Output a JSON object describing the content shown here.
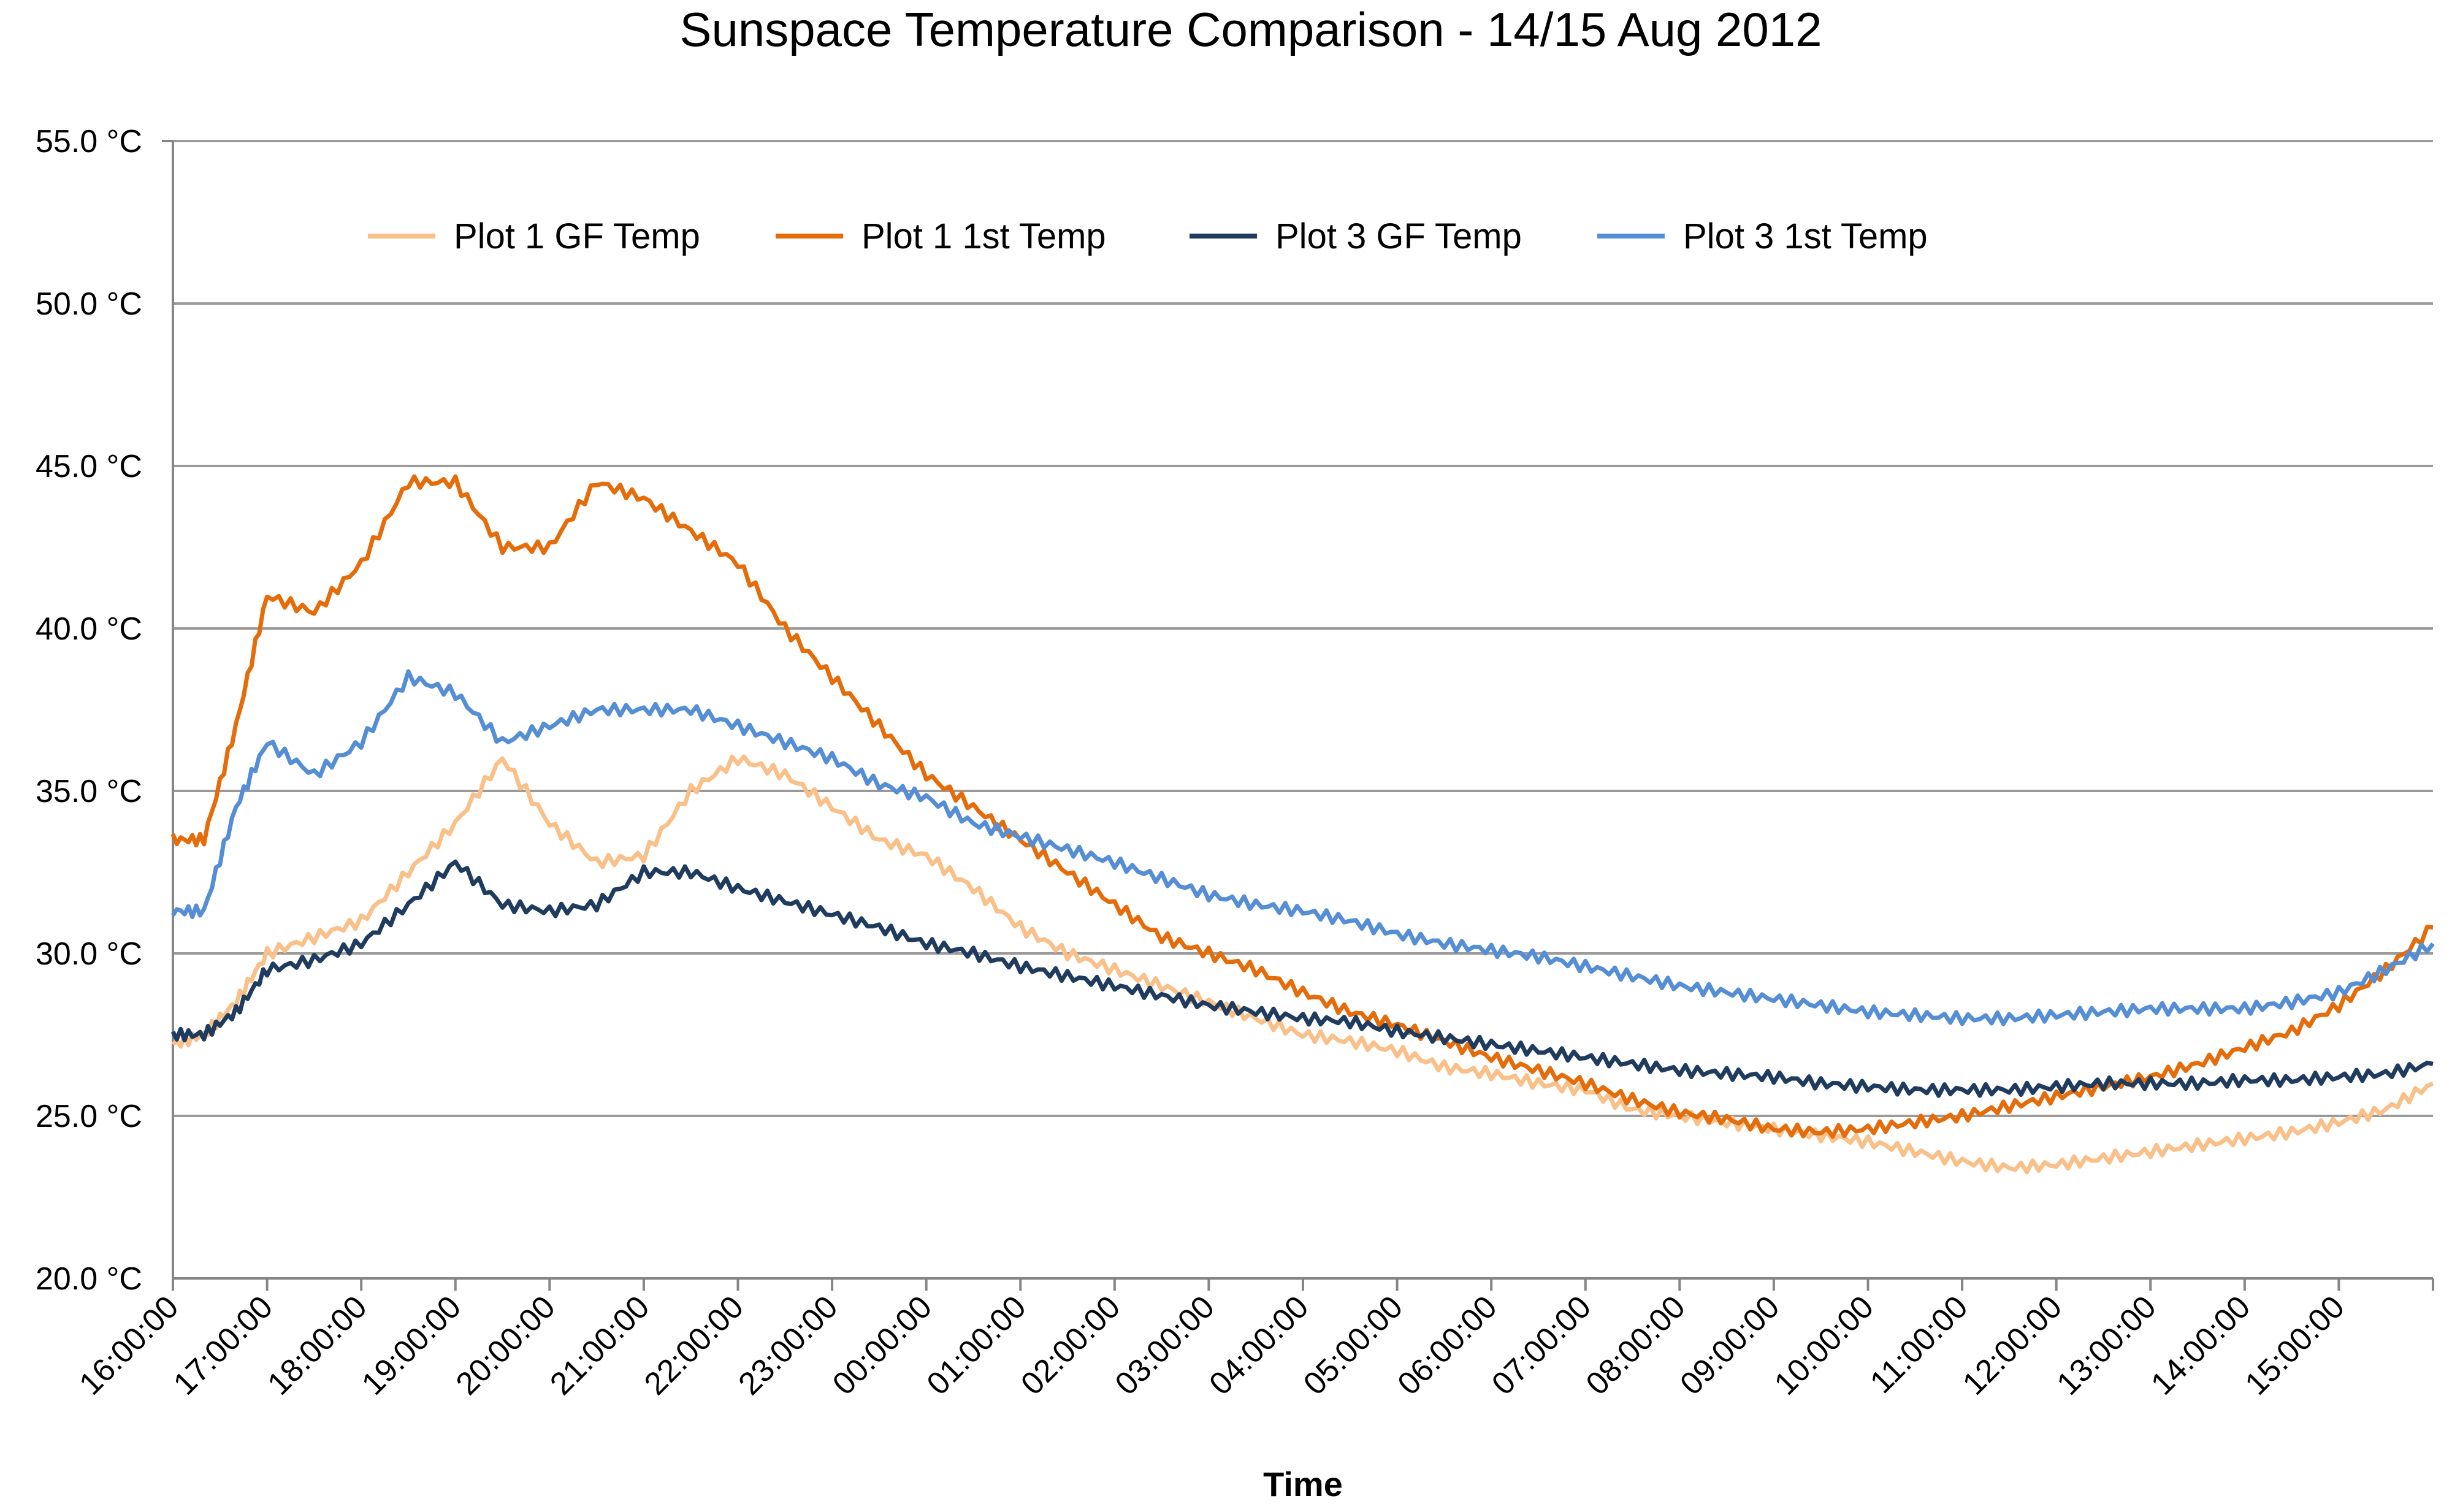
{
  "chart_data": {
    "type": "line",
    "title": "Sunspace Temperature Comparison - 14/15 Aug 2012",
    "xlabel": "Time",
    "ylabel": "",
    "ylim": [
      20,
      55
    ],
    "y_ticks": [
      "20.0 °C",
      "25.0 °C",
      "30.0 °C",
      "35.0 °C",
      "40.0 °C",
      "45.0 °C",
      "50.0 °C",
      "55.0 °C"
    ],
    "grid": true,
    "legend_placement": "top",
    "x_ticks": [
      "16:00:00",
      "17:00:00",
      "18:00:00",
      "19:00:00",
      "20:00:00",
      "21:00:00",
      "22:00:00",
      "23:00:00",
      "00:00:00",
      "01:00:00",
      "02:00:00",
      "03:00:00",
      "04:00:00",
      "05:00:00",
      "06:00:00",
      "07:00:00",
      "08:00:00",
      "09:00:00",
      "10:00:00",
      "11:00:00",
      "12:00:00",
      "13:00:00",
      "14:00:00",
      "15:00:00"
    ],
    "x_hours_from_start": [
      0,
      0.33,
      0.67,
      1,
      1.5,
      2,
      2.5,
      3,
      3.5,
      4,
      4.5,
      5,
      5.5,
      6,
      6.5,
      7,
      7.5,
      8,
      8.5,
      9,
      9.5,
      10,
      10.5,
      11,
      11.5,
      12,
      12.5,
      13,
      13.5,
      14,
      14.5,
      15,
      15.5,
      16,
      16.5,
      17,
      17.5,
      18,
      18.5,
      19,
      19.5,
      20,
      20.5,
      21,
      21.5,
      22,
      22.5,
      23,
      23.5,
      24
    ],
    "series": [
      {
        "name": "Plot 1 GF Temp",
        "color": "#f9c089",
        "values": [
          27.2,
          27.5,
          28.5,
          30.0,
          30.5,
          31.0,
          32.5,
          34.0,
          36.0,
          34.0,
          32.8,
          33.0,
          35.0,
          36.0,
          35.5,
          34.5,
          33.5,
          33.0,
          32.0,
          30.8,
          30.0,
          29.5,
          29.0,
          28.5,
          28.0,
          27.5,
          27.3,
          27.0,
          26.5,
          26.3,
          26.0,
          25.8,
          25.2,
          25.0,
          24.8,
          24.6,
          24.4,
          24.2,
          23.9,
          23.6,
          23.4,
          23.5,
          23.7,
          23.9,
          24.1,
          24.3,
          24.5,
          24.8,
          25.2,
          26.0
        ]
      },
      {
        "name": "Plot 1 1st Temp",
        "color": "#e46c0a",
        "values": [
          33.5,
          33.5,
          37.0,
          41.0,
          40.5,
          42.0,
          44.5,
          44.5,
          42.5,
          42.5,
          44.5,
          44.0,
          43.0,
          42.0,
          40.0,
          38.5,
          37.0,
          35.5,
          34.5,
          33.5,
          32.5,
          31.5,
          30.5,
          30.0,
          29.5,
          28.8,
          28.2,
          27.8,
          27.3,
          26.8,
          26.4,
          26.0,
          25.5,
          25.1,
          24.9,
          24.6,
          24.5,
          24.6,
          24.8,
          25.0,
          25.3,
          25.6,
          25.9,
          26.2,
          26.6,
          27.1,
          27.6,
          28.4,
          29.5,
          30.8
        ]
      },
      {
        "name": "Plot 3 GF Temp",
        "color": "#1f3b5e",
        "values": [
          27.5,
          27.5,
          28.2,
          29.5,
          29.8,
          30.3,
          31.5,
          32.8,
          31.5,
          31.3,
          31.5,
          32.5,
          32.5,
          32.0,
          31.6,
          31.2,
          30.8,
          30.3,
          30.0,
          29.6,
          29.3,
          29.0,
          28.7,
          28.4,
          28.2,
          28.0,
          27.9,
          27.6,
          27.4,
          27.2,
          27.0,
          26.8,
          26.6,
          26.4,
          26.3,
          26.2,
          26.0,
          25.9,
          25.8,
          25.8,
          25.8,
          25.9,
          26.0,
          26.0,
          26.0,
          26.1,
          26.1,
          26.2,
          26.3,
          26.6
        ]
      },
      {
        "name": "Plot 3 1st Temp",
        "color": "#558ed5",
        "values": [
          31.3,
          31.3,
          34.5,
          36.5,
          35.5,
          36.5,
          38.5,
          38.0,
          36.5,
          37.0,
          37.5,
          37.5,
          37.5,
          37.0,
          36.5,
          36.0,
          35.2,
          34.8,
          34.0,
          33.6,
          33.2,
          32.8,
          32.3,
          31.8,
          31.5,
          31.3,
          31.0,
          30.6,
          30.3,
          30.1,
          29.9,
          29.6,
          29.3,
          29.0,
          28.8,
          28.6,
          28.4,
          28.2,
          28.1,
          28.0,
          28.0,
          28.1,
          28.2,
          28.3,
          28.3,
          28.3,
          28.5,
          28.8,
          29.5,
          30.3
        ]
      }
    ]
  }
}
